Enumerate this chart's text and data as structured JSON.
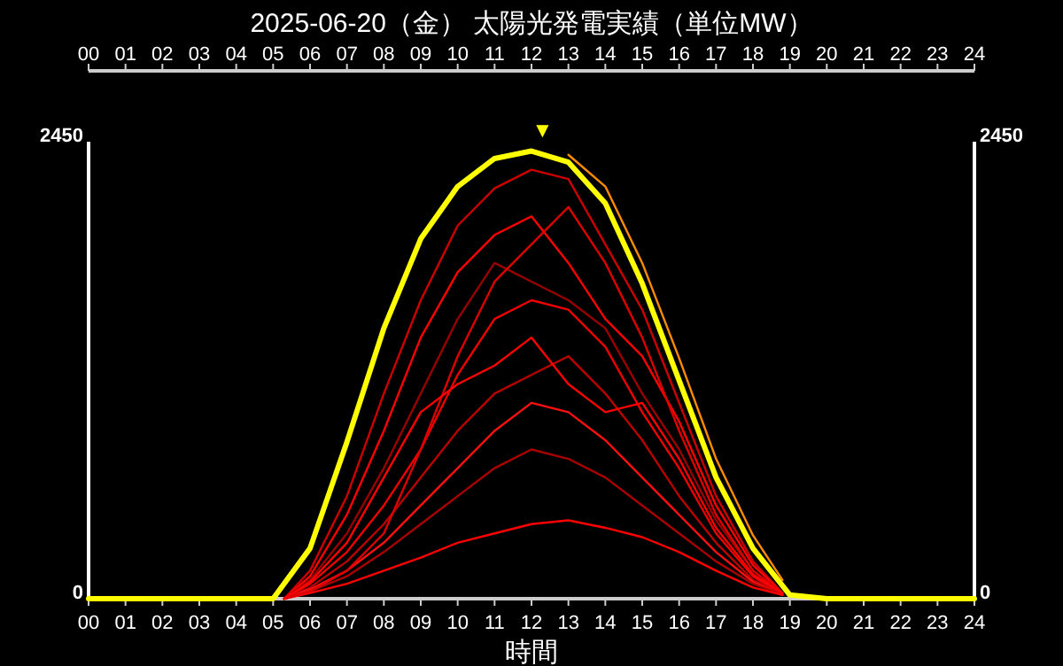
{
  "chart_data": {
    "type": "line",
    "title": "2025-06-20（金） 太陽光発電実績（単位MW）",
    "xlabel": "時間",
    "x": [
      0,
      1,
      2,
      3,
      4,
      5,
      6,
      7,
      8,
      9,
      10,
      11,
      12,
      13,
      14,
      15,
      16,
      17,
      18,
      19,
      20,
      21,
      22,
      23,
      24
    ],
    "xlim": [
      0,
      24
    ],
    "ylim": [
      0,
      2450
    ],
    "y2lim": [
      0,
      2450
    ],
    "x2lim": [
      0,
      24
    ],
    "xticks": [
      {
        "value": 0,
        "label": "00"
      },
      {
        "value": 1,
        "label": "01"
      },
      {
        "value": 2,
        "label": "02"
      },
      {
        "value": 3,
        "label": "03"
      },
      {
        "value": 4,
        "label": "04"
      },
      {
        "value": 5,
        "label": "05"
      },
      {
        "value": 6,
        "label": "06"
      },
      {
        "value": 7,
        "label": "07"
      },
      {
        "value": 8,
        "label": "08"
      },
      {
        "value": 9,
        "label": "09"
      },
      10,
      11,
      12,
      13,
      14,
      15,
      16,
      17,
      18,
      19,
      20,
      21,
      22,
      23,
      24
    ],
    "x2ticks": [
      {
        "value": 0,
        "label": "00"
      },
      {
        "value": 1,
        "label": "01"
      },
      {
        "value": 2,
        "label": "02"
      },
      {
        "value": 3,
        "label": "03"
      },
      {
        "value": 4,
        "label": "04"
      },
      {
        "value": 5,
        "label": "05"
      },
      {
        "value": 6,
        "label": "06"
      },
      {
        "value": 7,
        "label": "07"
      },
      {
        "value": 8,
        "label": "08"
      },
      {
        "value": 9,
        "label": "09"
      },
      10,
      11,
      12,
      13,
      14,
      15,
      16,
      17,
      18,
      19,
      20,
      21,
      22,
      23,
      24
    ],
    "yticks": [
      0,
      2450
    ],
    "y2ticks": [
      0,
      2450
    ],
    "series": [
      {
        "color": "#cc0000",
        "x": [
          5.3,
          6,
          7,
          8,
          9,
          10,
          11,
          12,
          13,
          14,
          15,
          16,
          17,
          18,
          18.8
        ],
        "values": [
          0,
          150,
          550,
          1100,
          1600,
          2000,
          2200,
          2300,
          2250,
          1900,
          1550,
          1050,
          550,
          200,
          30
        ]
      },
      {
        "color": "#ff0000",
        "x": [
          5.3,
          6,
          7,
          8,
          9,
          10,
          11,
          12,
          13,
          14,
          15,
          16,
          17,
          18,
          18.8
        ],
        "values": [
          0,
          120,
          450,
          900,
          1400,
          1750,
          1950,
          2050,
          1800,
          1500,
          1300,
          950,
          500,
          180,
          30
        ]
      },
      {
        "color": "#990000",
        "x": [
          5.3,
          6,
          7,
          8,
          9,
          10,
          11,
          12,
          13,
          14,
          15,
          16,
          17,
          18,
          18.8
        ],
        "values": [
          0,
          100,
          350,
          700,
          1100,
          1500,
          1800,
          1700,
          1600,
          1450,
          1100,
          800,
          420,
          150,
          30
        ]
      },
      {
        "color": "#ee0000",
        "x": [
          5.3,
          6,
          7,
          8,
          9,
          10,
          11,
          12,
          13,
          14,
          15,
          16,
          17,
          18,
          18.8
        ],
        "values": [
          0,
          80,
          250,
          500,
          800,
          1200,
          1500,
          1600,
          1550,
          1350,
          1000,
          700,
          350,
          120,
          20
        ]
      },
      {
        "color": "#bb0000",
        "x": [
          5.3,
          6,
          7,
          8,
          9,
          10,
          11,
          12,
          13,
          14,
          15,
          16,
          17,
          18,
          18.8
        ],
        "values": [
          0,
          60,
          200,
          400,
          650,
          900,
          1100,
          1200,
          1300,
          1100,
          850,
          550,
          300,
          100,
          20
        ]
      },
      {
        "color": "#ff1010",
        "x": [
          5.3,
          6,
          7,
          8,
          9,
          10,
          11,
          12,
          13,
          14,
          15,
          16,
          17,
          18,
          18.8
        ],
        "values": [
          0,
          50,
          150,
          300,
          500,
          700,
          900,
          1050,
          1000,
          850,
          650,
          450,
          250,
          90,
          20
        ]
      },
      {
        "color": "#aa0000",
        "x": [
          5.3,
          6,
          7,
          8,
          9,
          10,
          11,
          12,
          13,
          14,
          15,
          16,
          17,
          18,
          18.8
        ],
        "values": [
          0,
          40,
          120,
          250,
          400,
          550,
          700,
          800,
          750,
          650,
          500,
          350,
          200,
          80,
          20
        ]
      },
      {
        "color": "#ff0000",
        "x": [
          5.3,
          6,
          7,
          8,
          9,
          10,
          11,
          12,
          13,
          14,
          15,
          16,
          17,
          18,
          18.8
        ],
        "values": [
          0,
          30,
          80,
          150,
          220,
          300,
          350,
          400,
          420,
          380,
          330,
          250,
          150,
          60,
          20
        ]
      },
      {
        "color": "#dd0000",
        "x": [
          5.3,
          6,
          7,
          8,
          9,
          10,
          11,
          12,
          13,
          14,
          15,
          16,
          17,
          18,
          18.8
        ],
        "values": [
          0,
          40,
          150,
          350,
          800,
          1300,
          1700,
          1900,
          2100,
          1800,
          1400,
          900,
          450,
          150,
          30
        ]
      },
      {
        "color": "#ff0000",
        "x": [
          5.3,
          6,
          7,
          8,
          9,
          10,
          11,
          12,
          13,
          14,
          15,
          16,
          17,
          18,
          18.8
        ],
        "values": [
          0,
          90,
          300,
          650,
          1000,
          1150,
          1250,
          1400,
          1150,
          1000,
          1050,
          750,
          380,
          130,
          30
        ]
      },
      {
        "color": "#ff8c00",
        "x": [
          13,
          14,
          15,
          16,
          17,
          18,
          18.8
        ],
        "values": [
          2380,
          2210,
          1800,
          1290,
          750,
          340,
          100
        ]
      },
      {
        "color": "#ffff00",
        "values": [
          0,
          0,
          0,
          0,
          0,
          0,
          270,
          840,
          1450,
          1930,
          2210,
          2360,
          2400,
          2340,
          2120,
          1690,
          1170,
          650,
          270,
          20,
          0,
          0,
          0,
          0,
          0
        ]
      }
    ],
    "annotations": [
      {
        "text": "▼",
        "x": 12.3,
        "y": 2400
      }
    ]
  }
}
